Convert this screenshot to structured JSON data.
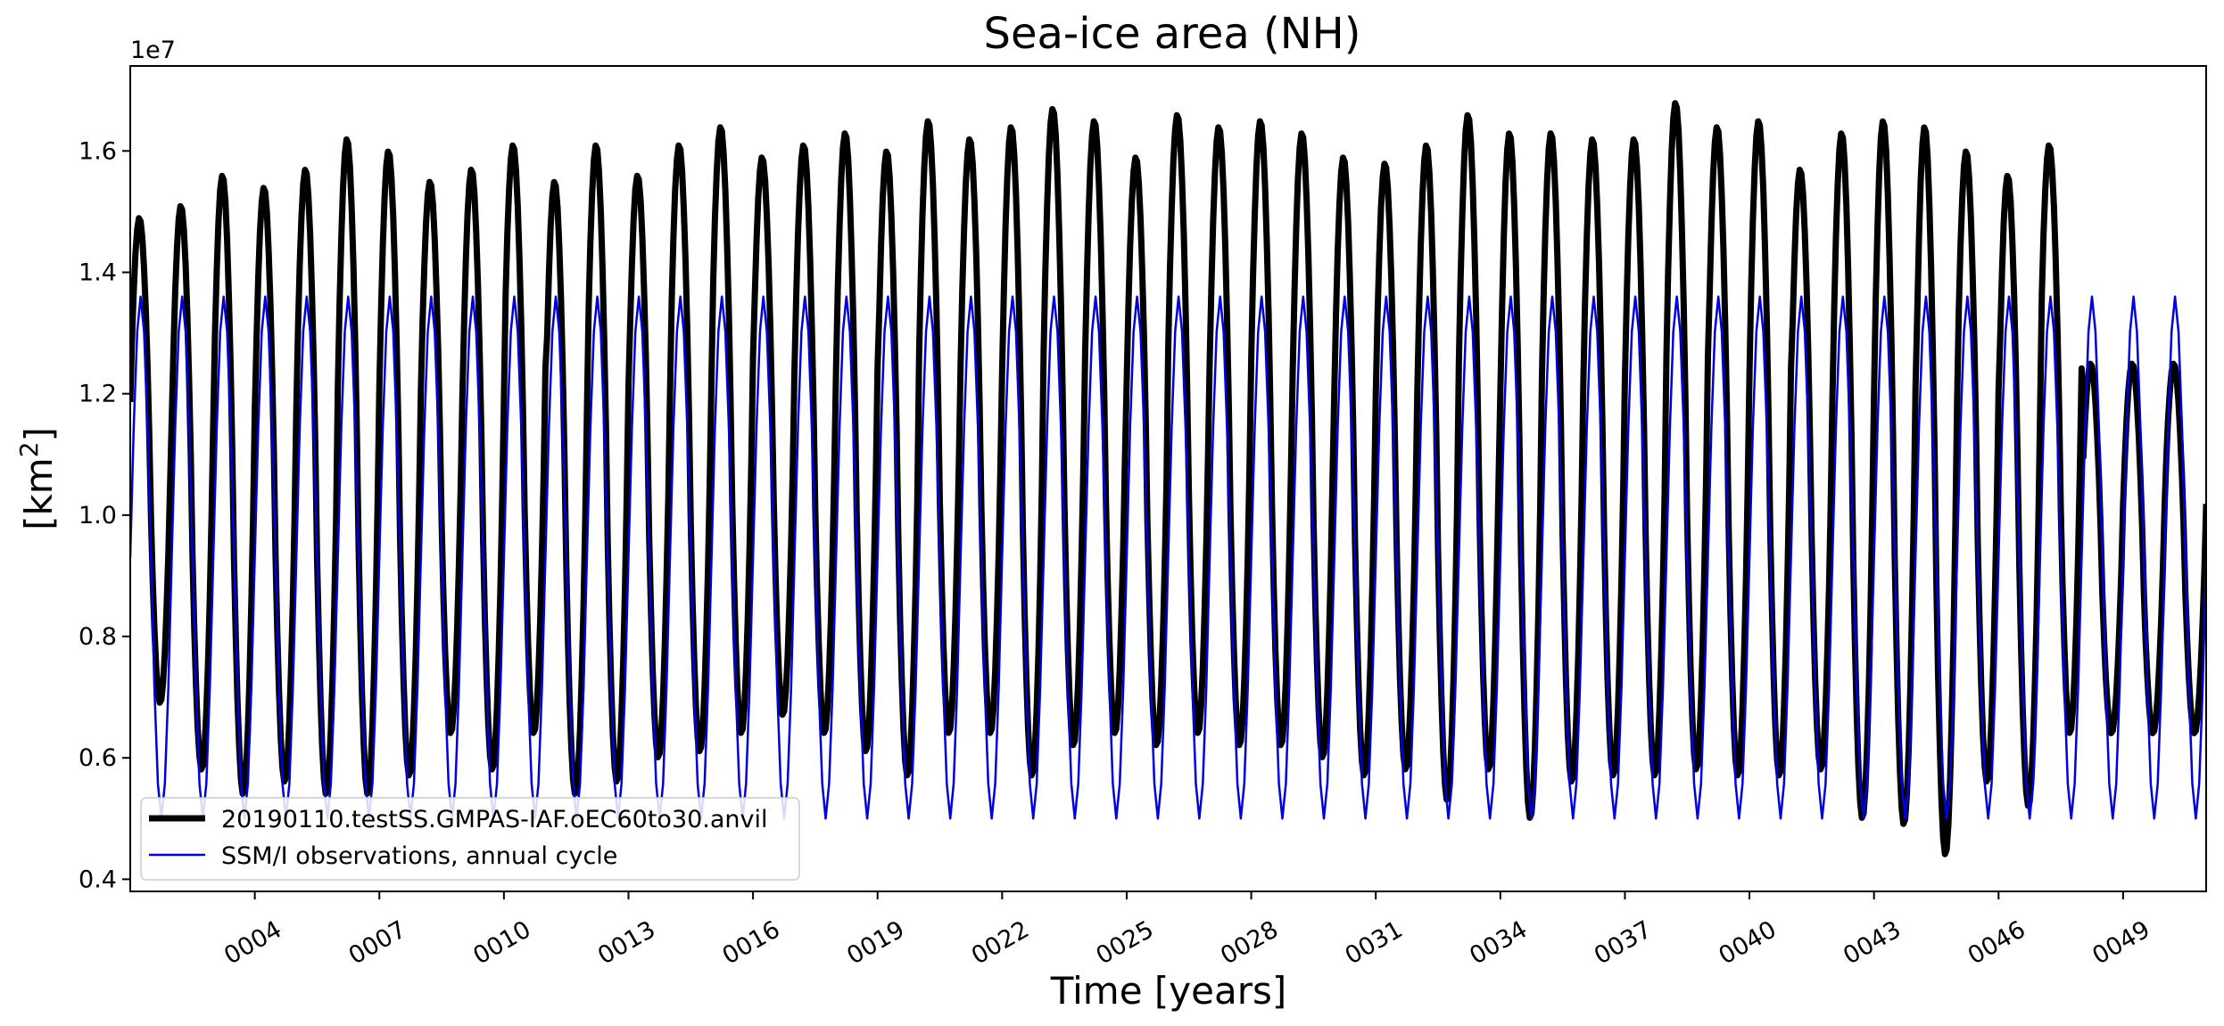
{
  "chart_data": {
    "type": "line",
    "title": "Sea-ice area (NH)",
    "xlabel": "Time [years]",
    "ylabel": "[km²]",
    "y_scale_label": "1e7",
    "y_multiplier": 10000000,
    "xlim": [
      1,
      51
    ],
    "ylim": [
      0.38,
      1.74
    ],
    "yticks": [
      0.4,
      0.6,
      0.8,
      1.0,
      1.2,
      1.4,
      1.6
    ],
    "ytick_labels": [
      "0.4",
      "0.6",
      "0.8",
      "1.0",
      "1.2",
      "1.4",
      "1.6"
    ],
    "xticks": [
      4,
      7,
      10,
      13,
      16,
      19,
      22,
      25,
      28,
      31,
      34,
      37,
      40,
      43,
      46,
      49
    ],
    "xtick_labels": [
      "0004",
      "0007",
      "0010",
      "0013",
      "0016",
      "0019",
      "0022",
      "0025",
      "0028",
      "0031",
      "0034",
      "0037",
      "0040",
      "0043",
      "0046",
      "0049"
    ],
    "grid": false,
    "legend_position": "lower-left",
    "series": [
      {
        "name": "20190110.testSS.GMPAS-IAF.oEC60to30.anvil",
        "color": "#000000",
        "style": "thick",
        "annual_max": [
          1.49,
          1.51,
          1.56,
          1.54,
          1.57,
          1.62,
          1.6,
          1.55,
          1.57,
          1.61,
          1.55,
          1.61,
          1.56,
          1.61,
          1.64,
          1.59,
          1.61,
          1.63,
          1.6,
          1.65,
          1.62,
          1.64,
          1.67,
          1.65,
          1.59,
          1.66,
          1.64,
          1.65,
          1.63,
          1.59,
          1.58,
          1.61,
          1.66,
          1.63,
          1.63,
          1.62,
          1.62,
          1.68,
          1.64,
          1.65,
          1.57,
          1.63,
          1.65,
          1.64,
          1.6,
          1.56,
          1.61,
          1.25
        ],
        "annual_min": [
          0.69,
          0.58,
          0.54,
          0.56,
          0.54,
          0.54,
          0.57,
          0.64,
          0.58,
          0.64,
          0.54,
          0.56,
          0.6,
          0.61,
          0.64,
          0.67,
          0.64,
          0.61,
          0.57,
          0.64,
          0.64,
          0.57,
          0.62,
          0.64,
          0.62,
          0.64,
          0.62,
          0.62,
          0.6,
          0.57,
          0.58,
          0.53,
          0.58,
          0.5,
          0.56,
          0.57,
          0.57,
          0.58,
          0.57,
          0.57,
          0.58,
          0.5,
          0.49,
          0.44,
          0.56,
          0.52,
          0.64,
          0.64
        ]
      },
      {
        "name": "SSM/I observations, annual cycle",
        "color": "#0000dd",
        "style": "thin",
        "annual_max": 1.36,
        "annual_min": 0.5
      }
    ]
  }
}
